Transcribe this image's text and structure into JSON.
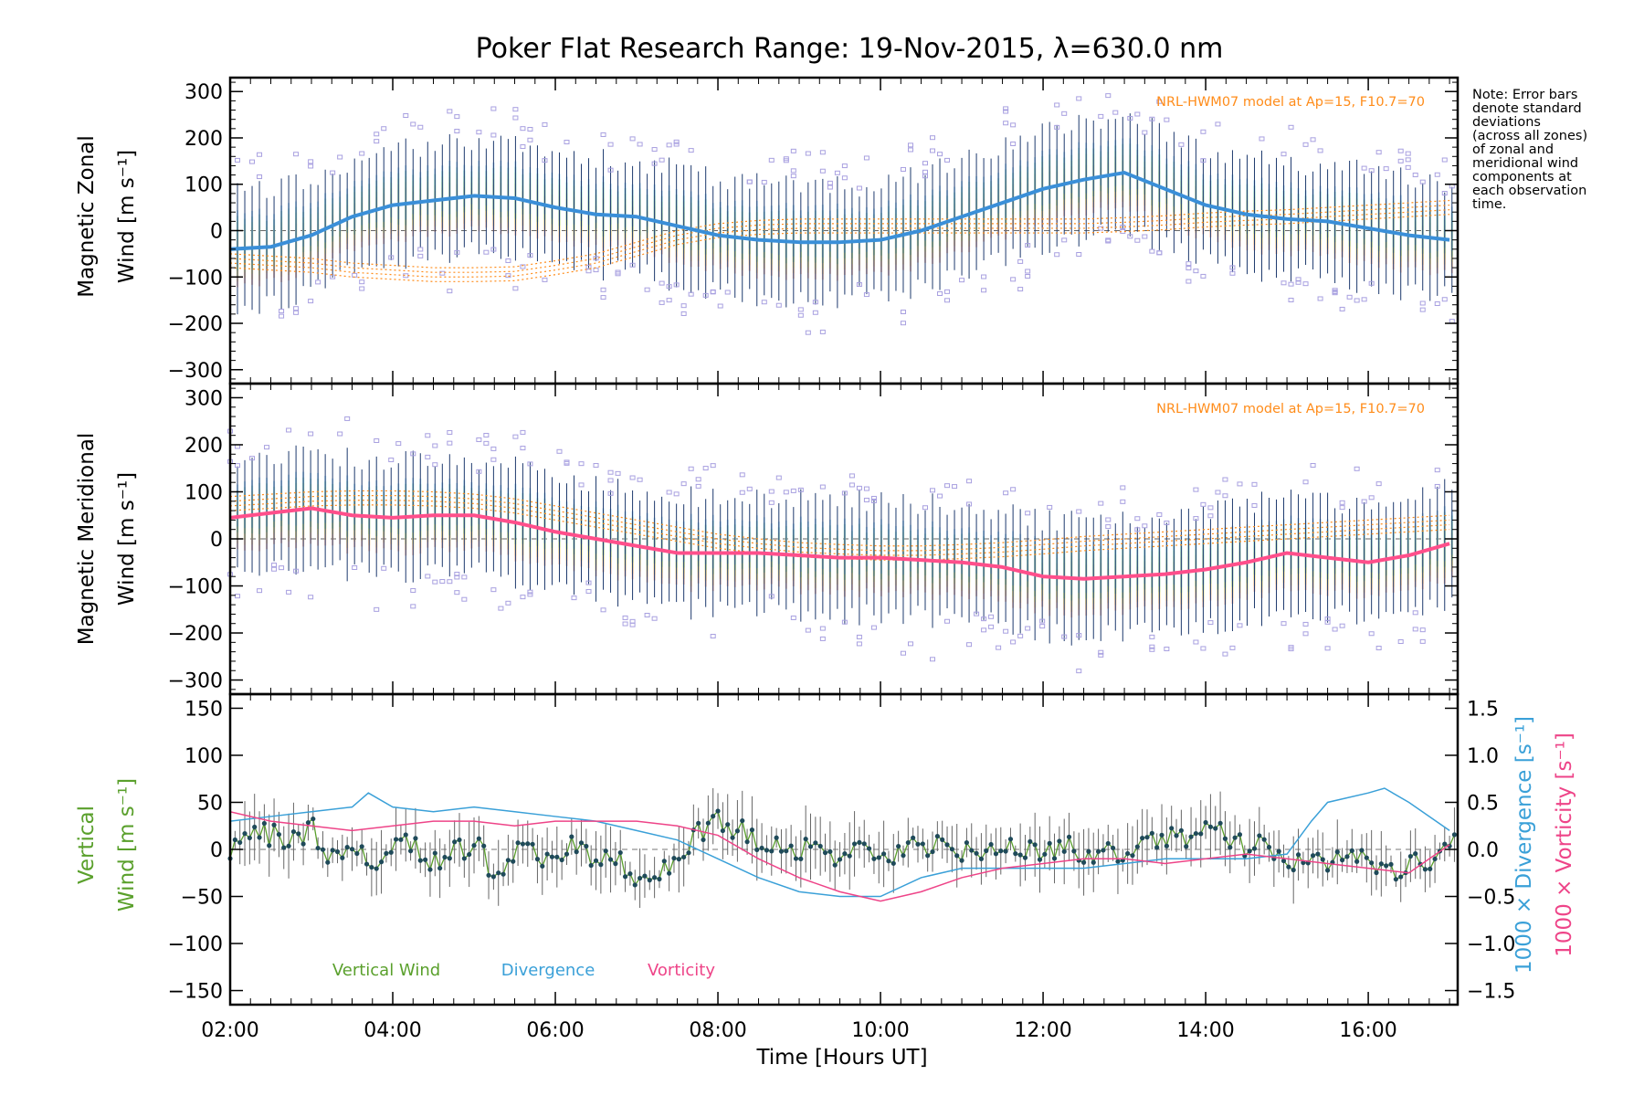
{
  "title": "Poker Flat Research Range: 19-Nov-2015, λ=630.0 nm",
  "note": [
    "Note: Error bars",
    "denote standard",
    "deviations",
    "(across all zones)",
    "of zonal and",
    "meridional wind",
    "components at",
    "each observation",
    "time."
  ],
  "colors": {
    "zonal": "#3a8fd8",
    "meridional": "#ff4f8b",
    "vertical": "#5aa02c",
    "divergence": "#3aa0d8",
    "vorticity": "#ee4488",
    "model": "#ff8c1a",
    "scatter": "#a8a0e0",
    "errorbar": "#1e3a6e"
  },
  "chart_data": [
    {
      "type": "line",
      "panel": "zonal",
      "ylabel": [
        "Magnetic Zonal",
        "Wind [m s⁻¹]"
      ],
      "ylim": [
        -330,
        330
      ],
      "yticks": [
        "300",
        "200",
        "100",
        "0",
        "−100",
        "−200",
        "−300"
      ],
      "ytick_values": [
        300,
        200,
        100,
        0,
        -100,
        -200,
        -300
      ],
      "xlim": [
        2.0,
        17.1
      ],
      "annotation": "NRL-HWM07 model at Ap=15, F10.7=70",
      "series": [
        {
          "role": "mean",
          "x": [
            2.0,
            2.5,
            3.0,
            3.5,
            4.0,
            4.5,
            5.0,
            5.5,
            6.0,
            6.5,
            7.0,
            7.5,
            8.0,
            8.5,
            9.0,
            9.5,
            10.0,
            10.5,
            11.0,
            11.5,
            12.0,
            12.5,
            13.0,
            13.5,
            14.0,
            14.5,
            15.0,
            15.5,
            16.0,
            16.5,
            17.0
          ],
          "y": [
            -40,
            -35,
            -10,
            30,
            55,
            65,
            75,
            70,
            50,
            35,
            30,
            10,
            -10,
            -20,
            -25,
            -25,
            -20,
            0,
            30,
            60,
            90,
            110,
            125,
            90,
            55,
            35,
            25,
            20,
            5,
            -10,
            -20
          ]
        },
        {
          "role": "model",
          "x": [
            2.0,
            2.5,
            3.0,
            3.5,
            4.0,
            4.5,
            5.0,
            5.5,
            6.0,
            6.5,
            7.0,
            7.5,
            8.0,
            8.5,
            9.0,
            9.5,
            10.0,
            10.5,
            11.0,
            11.5,
            12.0,
            12.5,
            13.0,
            13.5,
            14.0,
            14.5,
            15.0,
            15.5,
            16.0,
            16.5,
            17.0
          ],
          "y": [
            -60,
            -65,
            -70,
            -80,
            -85,
            -90,
            -90,
            -88,
            -75,
            -60,
            -35,
            -10,
            5,
            12,
            15,
            15,
            15,
            15,
            15,
            15,
            15,
            15,
            18,
            22,
            28,
            32,
            35,
            40,
            45,
            50,
            55
          ]
        }
      ]
    },
    {
      "type": "line",
      "panel": "meridional",
      "ylabel": [
        "Magnetic Meridional",
        "Wind [m s⁻¹]"
      ],
      "ylim": [
        -330,
        330
      ],
      "yticks": [
        "300",
        "200",
        "100",
        "0",
        "−100",
        "−200",
        "−300"
      ],
      "ytick_values": [
        300,
        200,
        100,
        0,
        -100,
        -200,
        -300
      ],
      "xlim": [
        2.0,
        17.1
      ],
      "annotation": "NRL-HWM07 model at Ap=15, F10.7=70",
      "series": [
        {
          "role": "mean",
          "x": [
            2.0,
            2.5,
            3.0,
            3.5,
            4.0,
            4.5,
            5.0,
            5.5,
            6.0,
            6.5,
            7.0,
            7.5,
            8.0,
            8.5,
            9.0,
            9.5,
            10.0,
            10.5,
            11.0,
            11.5,
            12.0,
            12.5,
            13.0,
            13.5,
            14.0,
            14.5,
            15.0,
            15.5,
            16.0,
            16.5,
            17.0
          ],
          "y": [
            45,
            55,
            65,
            50,
            45,
            50,
            50,
            35,
            15,
            0,
            -15,
            -30,
            -30,
            -30,
            -35,
            -40,
            -40,
            -45,
            -50,
            -60,
            -80,
            -85,
            -80,
            -75,
            -65,
            -50,
            -30,
            -40,
            -50,
            -35,
            -10
          ]
        },
        {
          "role": "model",
          "x": [
            2.0,
            2.5,
            3.0,
            3.5,
            4.0,
            4.5,
            5.0,
            5.5,
            6.0,
            6.5,
            7.0,
            7.5,
            8.0,
            8.5,
            9.0,
            9.5,
            10.0,
            10.5,
            11.0,
            11.5,
            12.0,
            12.5,
            13.0,
            13.5,
            14.0,
            14.5,
            15.0,
            15.5,
            16.0,
            16.5,
            17.0
          ],
          "y": [
            80,
            85,
            90,
            92,
            92,
            90,
            85,
            75,
            60,
            45,
            30,
            15,
            0,
            -10,
            -18,
            -22,
            -25,
            -25,
            -22,
            -18,
            -12,
            -5,
            0,
            5,
            10,
            15,
            20,
            25,
            30,
            35,
            40
          ]
        }
      ]
    },
    {
      "type": "line",
      "panel": "vertical",
      "ylabel": [
        "Vertical",
        "Wind [m s⁻¹]"
      ],
      "ylim": [
        -165,
        165
      ],
      "yticks": [
        "150",
        "100",
        "50",
        "0",
        "−50",
        "−100",
        "−150"
      ],
      "ytick_values": [
        150,
        100,
        50,
        0,
        -50,
        -100,
        -150
      ],
      "y2label": "1000 × Divergence [s⁻¹]",
      "y3label": "1000 × Vorticity [s⁻¹]",
      "y2lim": [
        -1.65,
        1.65
      ],
      "y2ticks": [
        "1.5",
        "1.0",
        "0.5",
        "0.0",
        "−0.5",
        "−1.0",
        "−1.5"
      ],
      "y2tick_values": [
        1.5,
        1.0,
        0.5,
        0.0,
        -0.5,
        -1.0,
        -1.5
      ],
      "xlabel": "Time [Hours UT]",
      "xticks": [
        "02:00",
        "04:00",
        "06:00",
        "08:00",
        "10:00",
        "12:00",
        "14:00",
        "16:00"
      ],
      "xtick_values": [
        2,
        4,
        6,
        8,
        10,
        12,
        14,
        16
      ],
      "xlim": [
        2.0,
        17.1
      ],
      "legend": [
        "Vertical Wind",
        "Divergence",
        "Vorticity"
      ],
      "series": [
        {
          "name": "Vertical Wind",
          "x": [
            2.0,
            2.25,
            2.5,
            2.75,
            3.0,
            3.25,
            3.5,
            3.75,
            4.0,
            4.25,
            4.5,
            4.75,
            5.0,
            5.25,
            5.5,
            5.75,
            6.0,
            6.25,
            6.5,
            6.75,
            7.0,
            7.25,
            7.5,
            7.75,
            8.0,
            8.25,
            8.5,
            8.75,
            9.0,
            9.25,
            9.5,
            9.75,
            10.0,
            10.25,
            10.5,
            10.75,
            11.0,
            11.25,
            11.5,
            11.75,
            12.0,
            12.25,
            12.5,
            12.75,
            13.0,
            13.25,
            13.5,
            13.75,
            14.0,
            14.25,
            14.5,
            14.75,
            15.0,
            15.25,
            15.5,
            15.75,
            16.0,
            16.25,
            16.5,
            16.75,
            17.0
          ],
          "y": [
            -5,
            20,
            15,
            5,
            25,
            -10,
            5,
            -20,
            0,
            10,
            -15,
            -5,
            10,
            -25,
            -5,
            0,
            -15,
            5,
            -10,
            -5,
            -45,
            -20,
            -10,
            15,
            30,
            20,
            10,
            5,
            0,
            -5,
            -5,
            5,
            -15,
            0,
            5,
            0,
            -5,
            0,
            5,
            -5,
            0,
            5,
            -5,
            0,
            -10,
            5,
            10,
            15,
            25,
            15,
            5,
            0,
            -5,
            -20,
            -15,
            -10,
            -5,
            -30,
            -10,
            -15,
            5
          ]
        },
        {
          "name": "Divergence",
          "x": [
            2.0,
            2.5,
            3.0,
            3.5,
            3.7,
            4.0,
            4.5,
            5.0,
            5.5,
            6.0,
            6.5,
            7.0,
            7.5,
            8.0,
            8.5,
            9.0,
            9.5,
            10.0,
            10.5,
            11.0,
            11.5,
            12.0,
            12.5,
            13.0,
            13.5,
            14.0,
            14.5,
            15.0,
            15.3,
            15.5,
            16.0,
            16.2,
            16.5,
            17.0
          ],
          "y": [
            0.3,
            0.35,
            0.4,
            0.45,
            0.6,
            0.45,
            0.4,
            0.45,
            0.4,
            0.35,
            0.3,
            0.2,
            0.1,
            -0.1,
            -0.3,
            -0.45,
            -0.5,
            -0.5,
            -0.3,
            -0.2,
            -0.2,
            -0.2,
            -0.2,
            -0.15,
            -0.1,
            -0.1,
            -0.1,
            -0.05,
            0.3,
            0.5,
            0.6,
            0.65,
            0.5,
            0.2
          ]
        },
        {
          "name": "Vorticity",
          "x": [
            2.0,
            2.5,
            3.0,
            3.5,
            4.0,
            4.5,
            5.0,
            5.5,
            6.0,
            6.5,
            7.0,
            7.5,
            8.0,
            8.5,
            9.0,
            9.5,
            10.0,
            10.5,
            11.0,
            11.5,
            12.0,
            12.5,
            13.0,
            13.5,
            14.0,
            14.5,
            15.0,
            15.5,
            16.0,
            16.5,
            17.0
          ],
          "y": [
            0.4,
            0.3,
            0.25,
            0.2,
            0.25,
            0.3,
            0.3,
            0.25,
            0.3,
            0.3,
            0.3,
            0.25,
            0.15,
            -0.1,
            -0.3,
            -0.45,
            -0.55,
            -0.45,
            -0.3,
            -0.2,
            -0.15,
            -0.1,
            -0.1,
            -0.15,
            -0.1,
            -0.05,
            -0.1,
            -0.15,
            -0.2,
            -0.25,
            0.05
          ]
        }
      ]
    }
  ]
}
